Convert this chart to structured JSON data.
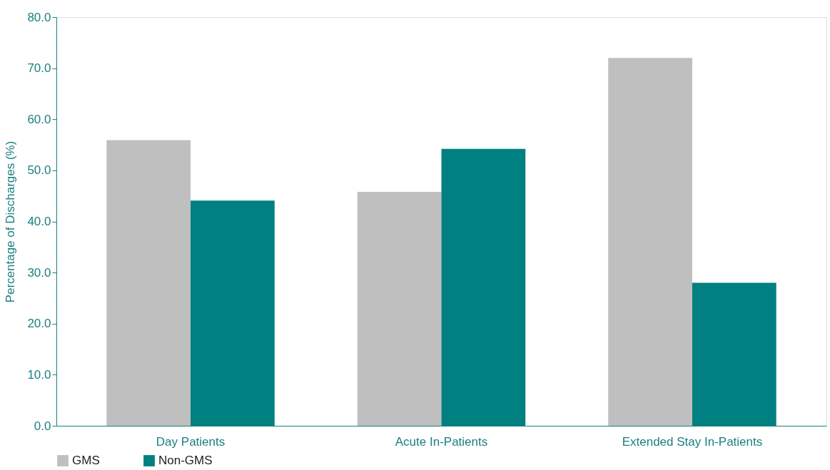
{
  "chart_data": {
    "type": "bar",
    "ylabel": "Percentage of Discharges (%)",
    "categories": [
      "Day Patients",
      "Acute In-Patients",
      "Extended Stay In-Patients"
    ],
    "series": [
      {
        "name": "GMS",
        "color": "#bfbfbf",
        "values": [
          55.9,
          45.8,
          72.0
        ]
      },
      {
        "name": "Non-GMS",
        "color": "#008080",
        "values": [
          44.1,
          54.2,
          28.0
        ]
      }
    ],
    "ylim": [
      0,
      80
    ],
    "yticks": [
      {
        "value": 0,
        "label": "0.0"
      },
      {
        "value": 10,
        "label": "10.0"
      },
      {
        "value": 20,
        "label": "20.0"
      },
      {
        "value": 30,
        "label": "30.0"
      },
      {
        "value": 40,
        "label": "40.0"
      },
      {
        "value": 50,
        "label": "50.0"
      },
      {
        "value": 60,
        "label": "60.0"
      },
      {
        "value": 70,
        "label": "70.0"
      },
      {
        "value": 80,
        "label": "80.0"
      }
    ],
    "grid": false,
    "legend": "bottom left"
  }
}
